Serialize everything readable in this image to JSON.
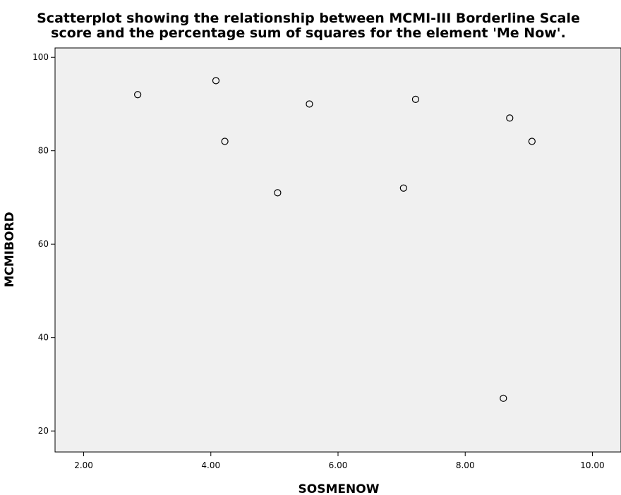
{
  "chart_data": {
    "type": "scatter",
    "title_lines": [
      "Scatterplot showing the relationship between MCMI-III Borderline Scale",
      "score and the percentage sum of squares for the element 'Me Now'."
    ],
    "xlabel": "SOSMENOW",
    "ylabel": "MCMIBORD",
    "xlim": [
      1.55,
      10.45
    ],
    "ylim": [
      15.5,
      102
    ],
    "x_ticks": [
      2.0,
      4.0,
      6.0,
      8.0,
      10.0
    ],
    "x_tick_labels": [
      "2.00",
      "4.00",
      "6.00",
      "8.00",
      "10.00"
    ],
    "y_ticks": [
      20,
      40,
      60,
      80,
      100
    ],
    "y_tick_labels": [
      "20",
      "40",
      "60",
      "80",
      "100"
    ],
    "grid": false,
    "marker": "hollow-circle",
    "colors": {
      "plot_background": "#f0f0f0",
      "marker_stroke": "#000000",
      "axis": "#000000"
    },
    "points": [
      {
        "x": 2.85,
        "y": 92
      },
      {
        "x": 4.08,
        "y": 95
      },
      {
        "x": 4.22,
        "y": 82
      },
      {
        "x": 5.05,
        "y": 71
      },
      {
        "x": 5.55,
        "y": 90
      },
      {
        "x": 7.03,
        "y": 72
      },
      {
        "x": 7.22,
        "y": 91
      },
      {
        "x": 8.6,
        "y": 27
      },
      {
        "x": 8.7,
        "y": 87
      },
      {
        "x": 9.05,
        "y": 82
      }
    ]
  }
}
